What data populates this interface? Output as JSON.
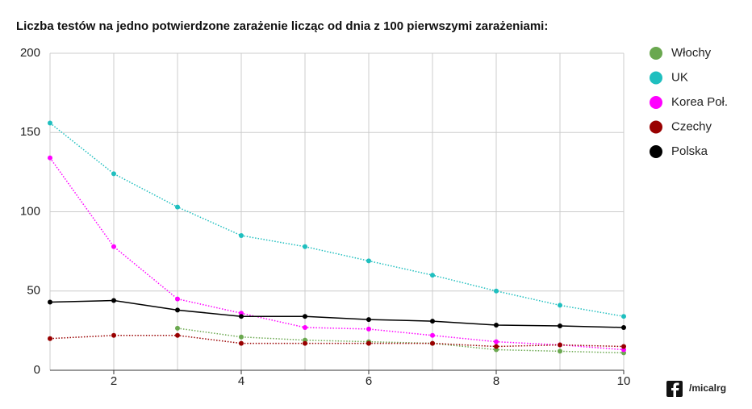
{
  "chart_data": {
    "type": "line",
    "title": "Liczba testów na jedno potwierdzone zarażenie licząc od dnia z 100 pierwszymi zarażeniami:",
    "x": [
      1,
      2,
      3,
      4,
      5,
      6,
      7,
      8,
      9,
      10
    ],
    "series": [
      {
        "name": "Włochy",
        "color": "#6aa84f",
        "line_style": "dotted",
        "values": [
          null,
          null,
          26.5,
          21,
          19,
          18,
          17,
          13,
          12,
          11
        ]
      },
      {
        "name": "UK",
        "color": "#1fbfbf",
        "line_style": "dotted",
        "values": [
          156,
          124,
          103,
          85,
          78,
          69,
          60,
          50,
          41,
          34
        ]
      },
      {
        "name": "Korea Poł.",
        "color": "#ff00ff",
        "line_style": "dotted",
        "values": [
          134,
          78,
          45,
          36,
          27,
          26,
          22,
          18,
          16,
          13
        ]
      },
      {
        "name": "Czechy",
        "color": "#990000",
        "line_style": "dotted",
        "values": [
          20,
          22,
          22,
          17,
          17,
          17,
          17,
          15,
          16,
          15
        ]
      },
      {
        "name": "Polska",
        "color": "#000000",
        "line_style": "solid",
        "values": [
          43,
          44,
          38,
          34,
          34,
          32,
          31,
          28.5,
          28,
          27
        ]
      }
    ],
    "xlim": [
      1,
      10
    ],
    "xticks": [
      2,
      4,
      6,
      8,
      10
    ],
    "x_gridlines": [
      1,
      2,
      3,
      4,
      5,
      6,
      7,
      8,
      9,
      10
    ],
    "ylim": [
      0,
      200
    ],
    "yticks": [
      0,
      50,
      100,
      150,
      200
    ],
    "grid": true,
    "legend": "right",
    "credit": "/micalrg"
  }
}
